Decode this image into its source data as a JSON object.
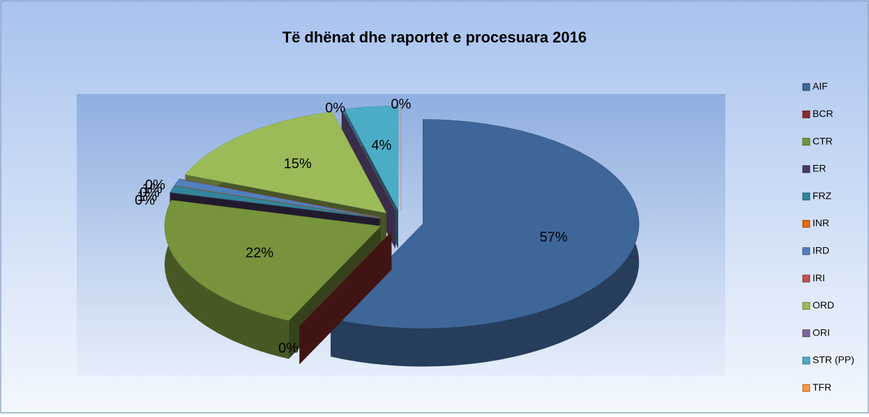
{
  "chart_data": {
    "type": "pie3d",
    "title": "Të dhënat dhe raportet e procesuara 2016",
    "categories": [
      "AIF",
      "BCR",
      "CTR",
      "ER",
      "FRZ",
      "INR",
      "IRD",
      "IRI",
      "ORD",
      "ORI",
      "STR (PP)",
      "TFR"
    ],
    "values": [
      57,
      0,
      22,
      0,
      1,
      0,
      1,
      0,
      15,
      0,
      4,
      0
    ],
    "colors": [
      "#3f6699",
      "#8b2c2a",
      "#77933c",
      "#4a3a66",
      "#31859c",
      "#e46c0a",
      "#4f81bd",
      "#c0504d",
      "#9bbb59",
      "#8064a2",
      "#4bacc6",
      "#f79646"
    ],
    "legend": "right"
  }
}
